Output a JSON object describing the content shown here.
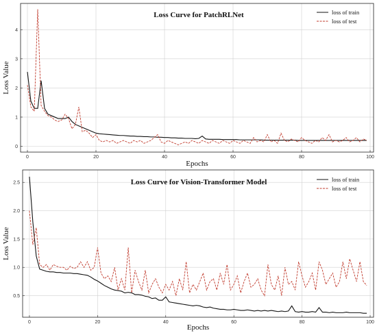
{
  "chart_data": [
    {
      "type": "line",
      "title": "Loss Curve for PatchRLNet",
      "xlabel": "Epochs",
      "ylabel": "Loss Value",
      "xlim": [
        -2,
        101
      ],
      "ylim": [
        -0.2,
        4.9
      ],
      "xticks": [
        0,
        20,
        40,
        60,
        80,
        100
      ],
      "yticks": [
        0,
        1,
        2,
        3,
        4
      ],
      "grid": true,
      "legend_position": "top-right",
      "x": [
        0,
        1,
        2,
        3,
        4,
        5,
        6,
        7,
        8,
        9,
        10,
        11,
        12,
        13,
        14,
        15,
        16,
        17,
        18,
        19,
        20,
        21,
        22,
        23,
        24,
        25,
        26,
        27,
        28,
        29,
        30,
        31,
        32,
        33,
        34,
        35,
        36,
        37,
        38,
        39,
        40,
        41,
        42,
        43,
        44,
        45,
        46,
        47,
        48,
        49,
        50,
        51,
        52,
        53,
        54,
        55,
        56,
        57,
        58,
        59,
        60,
        61,
        62,
        63,
        64,
        65,
        66,
        67,
        68,
        69,
        70,
        71,
        72,
        73,
        74,
        75,
        76,
        77,
        78,
        79,
        80,
        81,
        82,
        83,
        84,
        85,
        86,
        87,
        88,
        89,
        90,
        91,
        92,
        93,
        94,
        95,
        96,
        97,
        98,
        99
      ],
      "series": [
        {
          "name": "loss of train",
          "color": "#111111",
          "dash": "solid",
          "values": [
            2.55,
            1.55,
            1.3,
            1.3,
            2.25,
            1.3,
            1.1,
            1.05,
            1.0,
            0.95,
            0.95,
            0.95,
            1.0,
            0.85,
            0.75,
            0.7,
            0.65,
            0.6,
            0.55,
            0.5,
            0.45,
            0.43,
            0.42,
            0.41,
            0.4,
            0.39,
            0.38,
            0.37,
            0.37,
            0.36,
            0.35,
            0.35,
            0.34,
            0.34,
            0.33,
            0.33,
            0.32,
            0.32,
            0.31,
            0.31,
            0.3,
            0.3,
            0.29,
            0.29,
            0.28,
            0.28,
            0.27,
            0.27,
            0.27,
            0.26,
            0.27,
            0.35,
            0.25,
            0.24,
            0.24,
            0.24,
            0.24,
            0.23,
            0.23,
            0.23,
            0.23,
            0.23,
            0.22,
            0.22,
            0.22,
            0.22,
            0.22,
            0.22,
            0.22,
            0.21,
            0.21,
            0.21,
            0.21,
            0.21,
            0.21,
            0.21,
            0.21,
            0.21,
            0.21,
            0.2,
            0.2,
            0.2,
            0.2,
            0.2,
            0.2,
            0.2,
            0.2,
            0.2,
            0.2,
            0.2,
            0.2,
            0.2,
            0.2,
            0.2,
            0.2,
            0.2,
            0.2,
            0.2,
            0.2,
            0.2
          ]
        },
        {
          "name": "loss of test",
          "color": "#c0392b",
          "dash": "dashed",
          "values": [
            2.1,
            1.35,
            1.2,
            4.7,
            1.4,
            1.2,
            1.05,
            1.0,
            0.9,
            0.85,
            0.9,
            1.1,
            0.95,
            0.6,
            0.75,
            1.35,
            0.5,
            0.55,
            0.45,
            0.3,
            0.4,
            0.2,
            0.15,
            0.2,
            0.15,
            0.2,
            0.1,
            0.15,
            0.2,
            0.15,
            0.1,
            0.2,
            0.15,
            0.2,
            0.1,
            0.15,
            0.2,
            0.3,
            0.4,
            0.15,
            0.1,
            0.2,
            0.15,
            0.1,
            0.05,
            0.1,
            0.15,
            0.1,
            0.2,
            0.15,
            0.1,
            0.2,
            0.15,
            0.1,
            0.2,
            0.15,
            0.1,
            0.2,
            0.15,
            0.1,
            0.2,
            0.15,
            0.1,
            0.2,
            0.15,
            0.1,
            0.3,
            0.15,
            0.2,
            0.15,
            0.4,
            0.15,
            0.2,
            0.1,
            0.45,
            0.2,
            0.15,
            0.25,
            0.2,
            0.15,
            0.3,
            0.2,
            0.15,
            0.1,
            0.2,
            0.15,
            0.3,
            0.2,
            0.4,
            0.15,
            0.2,
            0.15,
            0.2,
            0.3,
            0.15,
            0.2,
            0.3,
            0.15,
            0.25,
            0.2
          ]
        }
      ]
    },
    {
      "type": "line",
      "title": "Loss Curve for Vision-Transformer Model",
      "xlabel": "Epochs",
      "ylabel": "Loss Value",
      "xlim": [
        -2,
        101
      ],
      "ylim": [
        0.12,
        2.72
      ],
      "xticks": [
        0,
        20,
        40,
        60,
        80,
        100
      ],
      "yticks": [
        0.5,
        1.0,
        1.5,
        2.0,
        2.5
      ],
      "grid": true,
      "legend_position": "top-right",
      "x": [
        0,
        1,
        2,
        3,
        4,
        5,
        6,
        7,
        8,
        9,
        10,
        11,
        12,
        13,
        14,
        15,
        16,
        17,
        18,
        19,
        20,
        21,
        22,
        23,
        24,
        25,
        26,
        27,
        28,
        29,
        30,
        31,
        32,
        33,
        34,
        35,
        36,
        37,
        38,
        39,
        40,
        41,
        42,
        43,
        44,
        45,
        46,
        47,
        48,
        49,
        50,
        51,
        52,
        53,
        54,
        55,
        56,
        57,
        58,
        59,
        60,
        61,
        62,
        63,
        64,
        65,
        66,
        67,
        68,
        69,
        70,
        71,
        72,
        73,
        74,
        75,
        76,
        77,
        78,
        79,
        80,
        81,
        82,
        83,
        84,
        85,
        86,
        87,
        88,
        89,
        90,
        91,
        92,
        93,
        94,
        95,
        96,
        97,
        98,
        99
      ],
      "series": [
        {
          "name": "loss of train",
          "color": "#111111",
          "dash": "solid",
          "values": [
            2.6,
            1.8,
            1.2,
            0.97,
            0.95,
            0.93,
            0.92,
            0.92,
            0.91,
            0.91,
            0.9,
            0.9,
            0.9,
            0.89,
            0.89,
            0.88,
            0.87,
            0.86,
            0.83,
            0.79,
            0.76,
            0.72,
            0.68,
            0.65,
            0.62,
            0.6,
            0.59,
            0.58,
            0.55,
            0.56,
            0.55,
            0.52,
            0.52,
            0.51,
            0.49,
            0.48,
            0.45,
            0.46,
            0.42,
            0.42,
            0.48,
            0.39,
            0.38,
            0.37,
            0.36,
            0.35,
            0.34,
            0.33,
            0.32,
            0.33,
            0.32,
            0.3,
            0.29,
            0.3,
            0.28,
            0.27,
            0.26,
            0.26,
            0.25,
            0.25,
            0.26,
            0.25,
            0.24,
            0.24,
            0.25,
            0.24,
            0.23,
            0.24,
            0.23,
            0.24,
            0.23,
            0.24,
            0.23,
            0.22,
            0.23,
            0.22,
            0.23,
            0.32,
            0.22,
            0.21,
            0.22,
            0.21,
            0.21,
            0.22,
            0.21,
            0.29,
            0.21,
            0.21,
            0.2,
            0.21,
            0.2,
            0.2,
            0.2,
            0.21,
            0.2,
            0.2,
            0.2,
            0.2,
            0.19,
            0.19
          ]
        },
        {
          "name": "loss of test",
          "color": "#c0392b",
          "dash": "dashed",
          "values": [
            2.0,
            1.4,
            1.7,
            1.05,
            1.0,
            1.05,
            0.95,
            1.05,
            1.02,
            1.0,
            1.0,
            0.95,
            1.02,
            0.98,
            1.0,
            1.1,
            1.0,
            1.1,
            0.95,
            1.0,
            1.35,
            0.9,
            0.8,
            0.85,
            0.75,
            1.0,
            0.6,
            0.8,
            0.6,
            1.35,
            0.55,
            0.95,
            0.75,
            0.6,
            0.95,
            0.55,
            0.7,
            0.8,
            0.65,
            0.55,
            0.7,
            0.6,
            0.75,
            0.5,
            0.8,
            0.6,
            1.1,
            0.55,
            0.7,
            0.6,
            0.75,
            0.9,
            0.6,
            0.75,
            0.8,
            0.6,
            0.9,
            0.7,
            1.05,
            0.6,
            0.7,
            0.85,
            0.55,
            0.75,
            0.9,
            0.65,
            0.7,
            0.8,
            0.6,
            0.5,
            1.05,
            0.7,
            0.6,
            0.85,
            0.5,
            1.0,
            0.7,
            0.75,
            0.6,
            1.1,
            0.85,
            0.65,
            0.75,
            0.9,
            0.6,
            1.1,
            0.95,
            0.7,
            0.8,
            0.9,
            0.65,
            0.75,
            1.1,
            0.8,
            1.15,
            0.95,
            0.75,
            1.1,
            0.75,
            0.68
          ]
        }
      ]
    }
  ]
}
